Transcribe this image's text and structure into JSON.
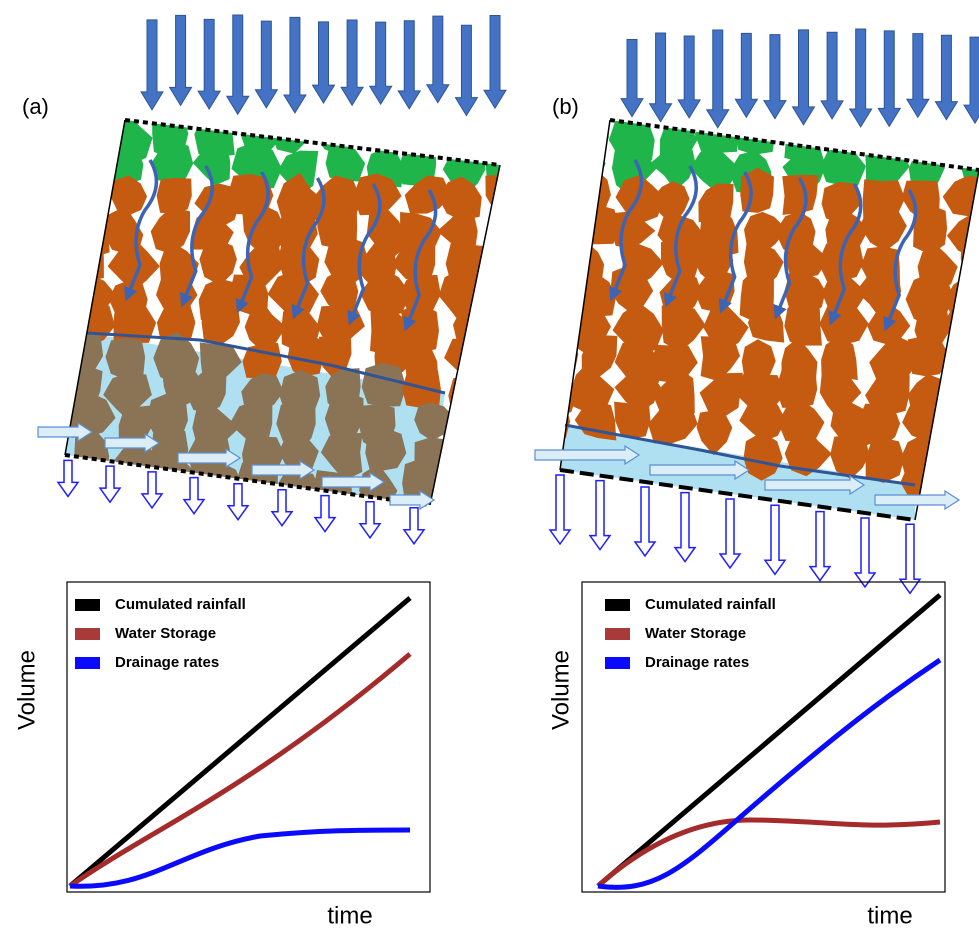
{
  "panels": [
    {
      "label": "(a)",
      "legend": [
        "Cumulated rainfall",
        "Water Storage",
        "Drainage rates"
      ],
      "y_label": "Volume",
      "x_label": "time"
    },
    {
      "label": "(b)",
      "legend": [
        "Cumulated rainfall",
        "Water Storage",
        "Drainage rates"
      ],
      "y_label": "Volume",
      "x_label": "time"
    }
  ]
}
